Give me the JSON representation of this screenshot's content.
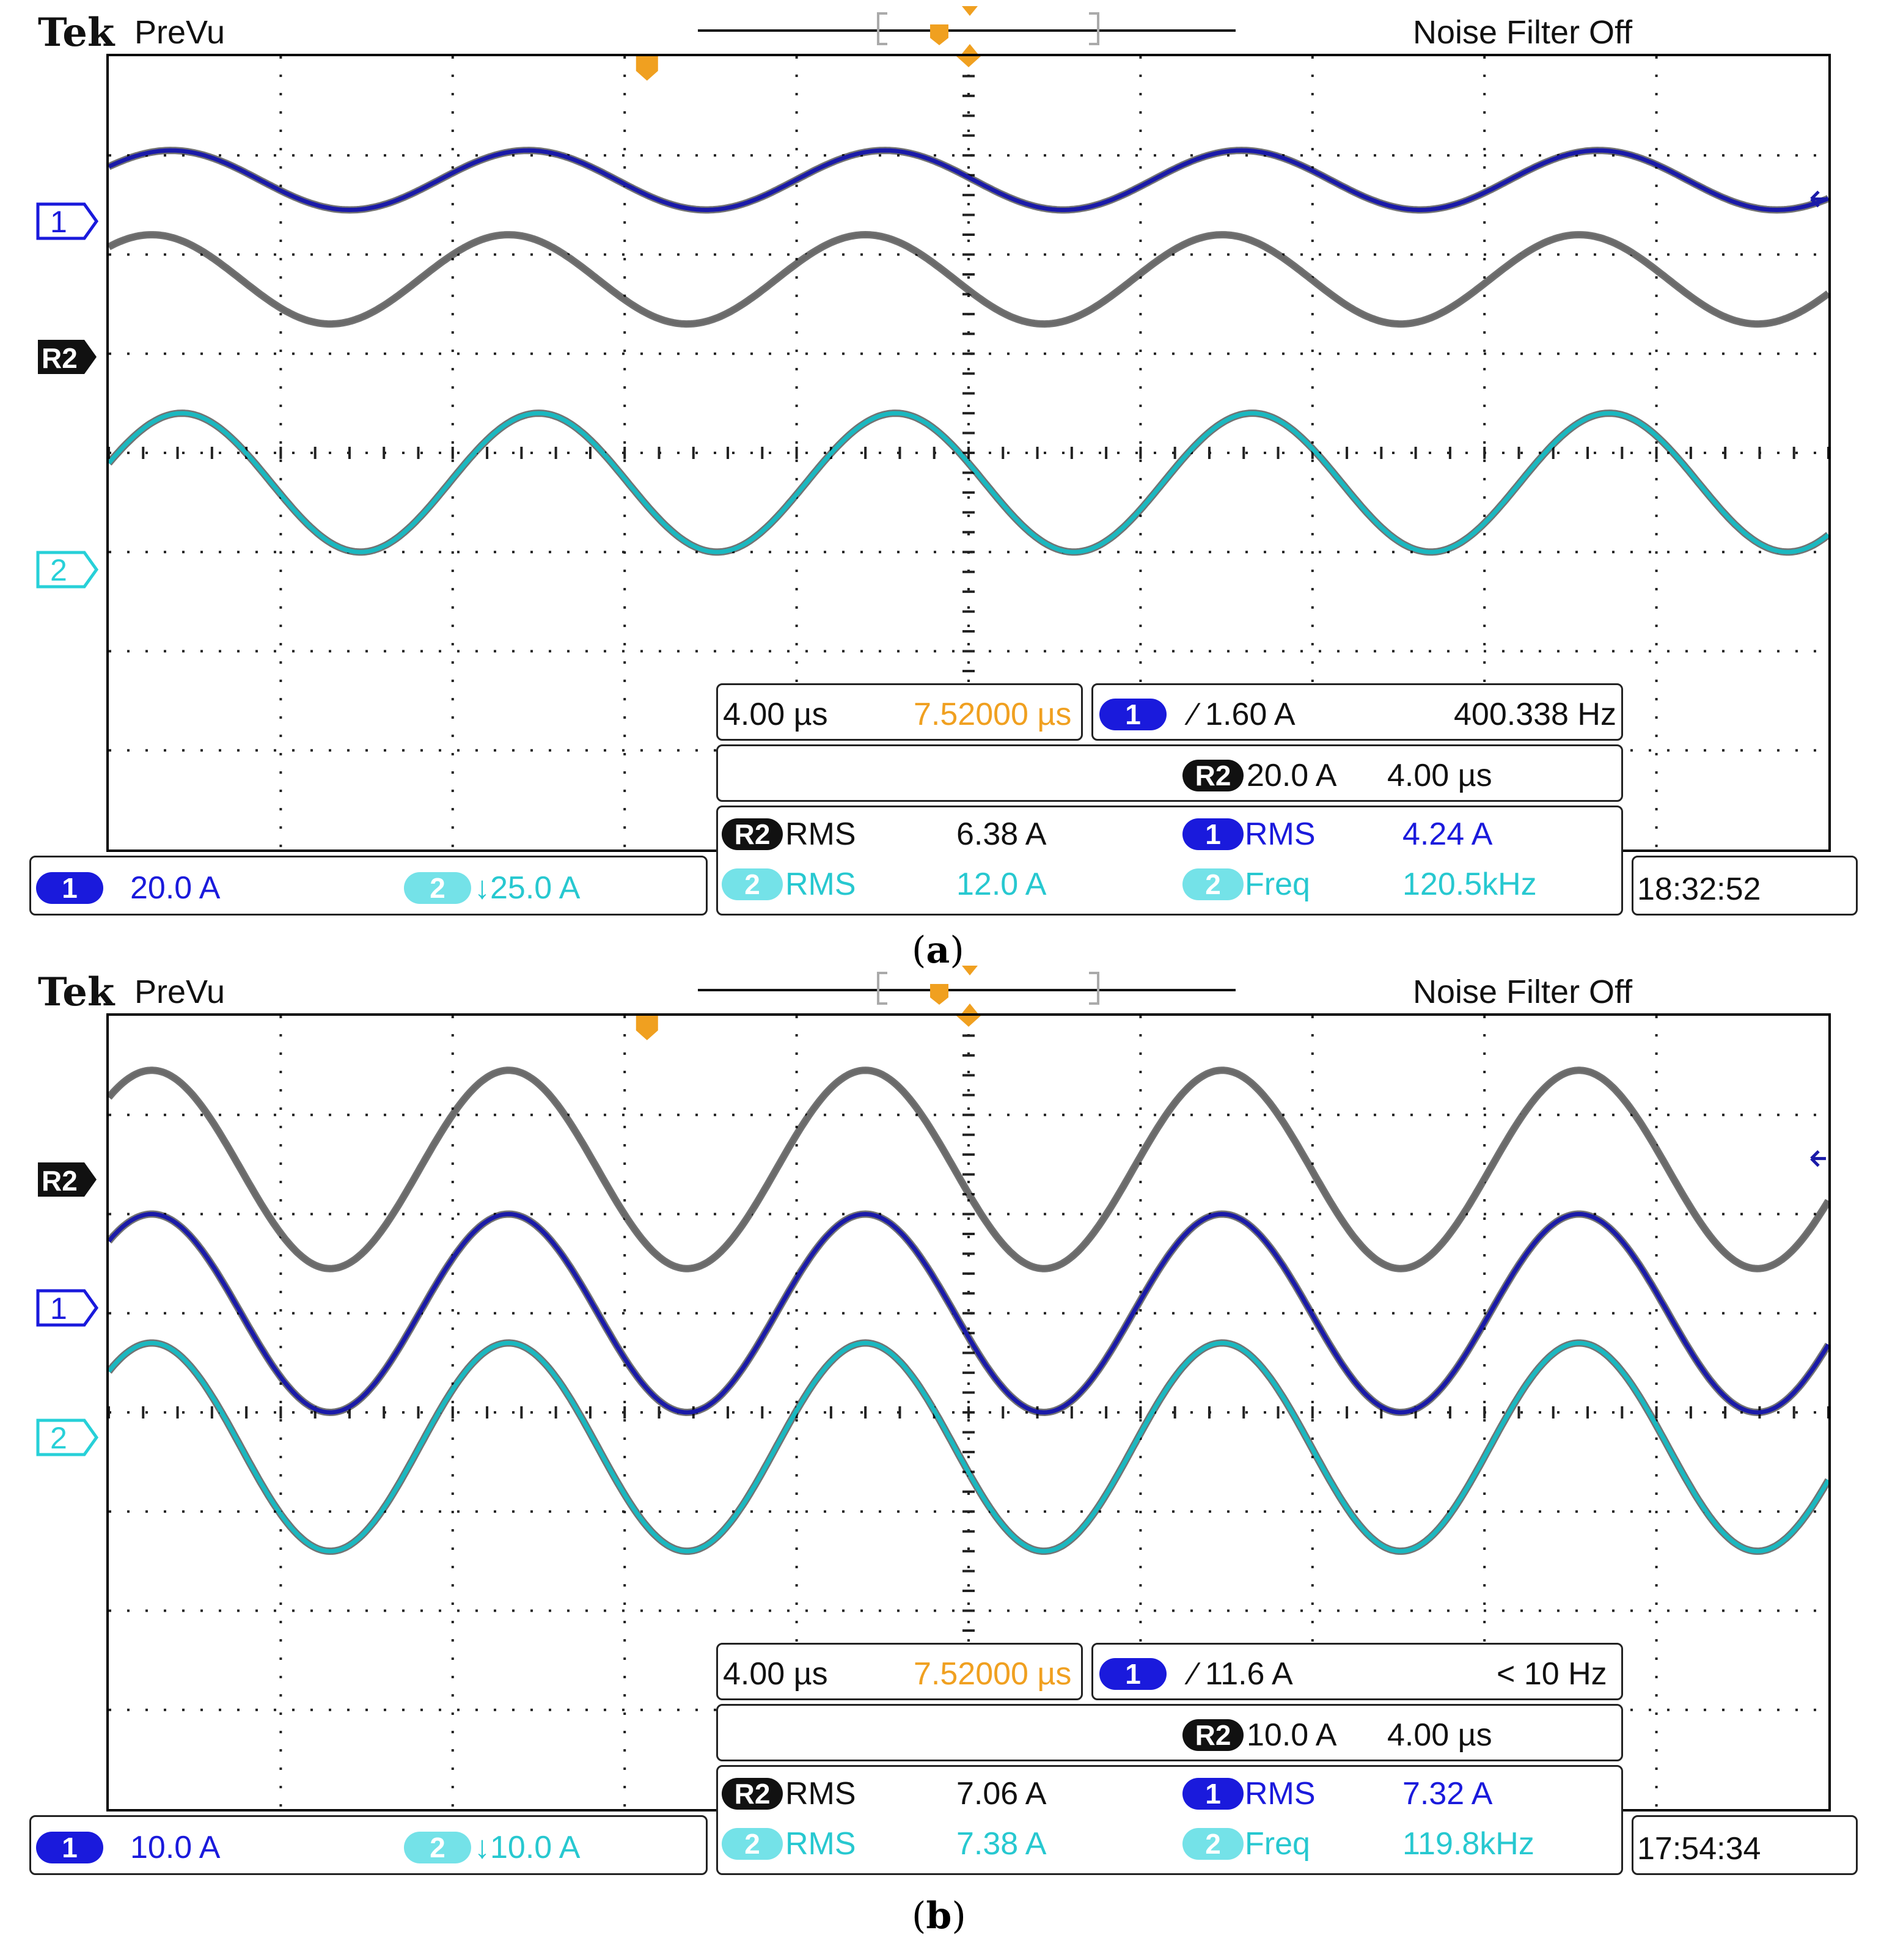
{
  "header": {
    "brand": "Tek",
    "mode": "PreVu",
    "filter": "Noise Filter Off"
  },
  "colors": {
    "ch1": "#1a1aa8",
    "ch2": "#1ab8c0",
    "r2": "#6a6a6a",
    "accent": "#f0a020",
    "grid": "#222222"
  },
  "panels": [
    {
      "caption_open": "(",
      "caption_letter": "a",
      "caption_close": ")",
      "timebase": "4.00 µs",
      "delay": "7.52000 µs",
      "trig_ch": "1",
      "trig_level": "∕ 1.60 A",
      "trig_freq": "400.338 Hz",
      "ref_label": "R2",
      "ref_scale": "20.0 A",
      "ref_time": "4.00 µs",
      "meas": [
        {
          "src": "R2",
          "name": "RMS",
          "value": "6.38 A"
        },
        {
          "src": "1",
          "name": "RMS",
          "value": "4.24 A"
        },
        {
          "src": "2",
          "name": "RMS",
          "value": "12.0 A"
        },
        {
          "src": "2",
          "name": "Freq",
          "value": "120.5kHz"
        }
      ],
      "ch1_badge": "1",
      "ch1_scale": "20.0 A",
      "ch2_badge": "2",
      "ch2_scale": "↓25.0 A",
      "time": "18:32:52",
      "marker_ch1": "1",
      "marker_r2": "R2",
      "marker_ch2": "2"
    },
    {
      "caption_open": "(",
      "caption_letter": "b",
      "caption_close": ")",
      "timebase": "4.00 µs",
      "delay": "7.52000 µs",
      "trig_ch": "1",
      "trig_level": "∕ 11.6 A",
      "trig_freq": "< 10 Hz",
      "ref_label": "R2",
      "ref_scale": "10.0 A",
      "ref_time": "4.00 µs",
      "meas": [
        {
          "src": "R2",
          "name": "RMS",
          "value": "7.06 A"
        },
        {
          "src": "1",
          "name": "RMS",
          "value": "7.32 A"
        },
        {
          "src": "2",
          "name": "RMS",
          "value": "7.38 A"
        },
        {
          "src": "2",
          "name": "Freq",
          "value": "119.8kHz"
        }
      ],
      "ch1_badge": "1",
      "ch1_scale": "10.0 A",
      "ch2_badge": "2",
      "ch2_scale": "↓10.0 A",
      "time": "17:54:34",
      "marker_ch1": "1",
      "marker_r2": "R2",
      "marker_ch2": "2"
    }
  ],
  "chart_data": [
    {
      "type": "line",
      "title": "(a)",
      "x_unit": "us",
      "xlim": [
        0,
        40
      ],
      "x_div": 4.0,
      "divisions_x": 10,
      "divisions_y": 8,
      "period_us": 8.3,
      "series": [
        {
          "name": "CH1",
          "scale_A_per_div": 20.0,
          "center_div": 2.75,
          "amp_div": 0.3,
          "phase_us": 1.45
        },
        {
          "name": "R2",
          "scale_A_per_div": 20.0,
          "center_div": 1.75,
          "amp_div": 0.45,
          "phase_us": 1.0
        },
        {
          "name": "CH2",
          "scale_A_per_div": 25.0,
          "center_div": -0.3,
          "amp_div": 0.7,
          "phase_us": 1.7
        }
      ]
    },
    {
      "type": "line",
      "title": "(b)",
      "x_unit": "us",
      "xlim": [
        0,
        40
      ],
      "x_div": 4.0,
      "divisions_x": 10,
      "divisions_y": 8,
      "period_us": 8.3,
      "series": [
        {
          "name": "R2",
          "scale_A_per_div": 10.0,
          "center_div": 2.45,
          "amp_div": 1.0,
          "phase_us": 1.0
        },
        {
          "name": "CH1",
          "scale_A_per_div": 10.0,
          "center_div": 1.0,
          "amp_div": 1.0,
          "phase_us": 1.0
        },
        {
          "name": "CH2",
          "scale_A_per_div": 10.0,
          "center_div": -0.35,
          "amp_div": 1.05,
          "phase_us": 1.0
        }
      ]
    }
  ]
}
